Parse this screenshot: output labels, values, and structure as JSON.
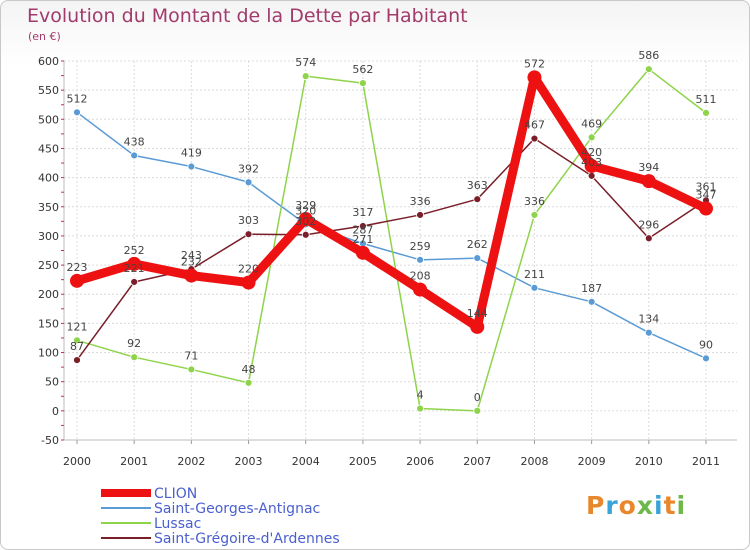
{
  "header": {
    "title": "Evolution du Montant de la Dette par Habitant",
    "unit": "(en €)"
  },
  "logo": {
    "text": "Proxiti",
    "letters": [
      "P",
      "r",
      "o",
      "x",
      "i",
      "t",
      "i"
    ],
    "colors": [
      "#e8872b",
      "#3aa3d8",
      "#e8872b",
      "#6cb84a",
      "#3aa3d8",
      "#e8872b",
      "#6cb84a"
    ]
  },
  "chart_data": {
    "type": "line",
    "title": "Evolution du Montant de la Dette par Habitant",
    "ylabel": "(en €)",
    "xlabel": "",
    "x": [
      "2000",
      "2001",
      "2002",
      "2003",
      "2004",
      "2005",
      "2006",
      "2007",
      "2008",
      "2009",
      "2010",
      "2011"
    ],
    "ylim": [
      -50,
      600
    ],
    "yticks": [
      -50,
      0,
      50,
      100,
      150,
      200,
      250,
      300,
      350,
      400,
      450,
      500,
      550,
      600
    ],
    "grid": true,
    "legend_position": "bottom-left",
    "series": [
      {
        "name": "CLION",
        "color": "#ee1111",
        "emphasis": true,
        "values": [
          223,
          252,
          232,
          220,
          329,
          271,
          208,
          144,
          572,
          420,
          394,
          347
        ]
      },
      {
        "name": "Saint-Georges-Antignac",
        "color": "#5b9bd5",
        "emphasis": false,
        "values": [
          512,
          438,
          419,
          392,
          320,
          287,
          259,
          262,
          211,
          187,
          134,
          90
        ]
      },
      {
        "name": "Lussac",
        "color": "#8ed44a",
        "emphasis": false,
        "values": [
          121,
          92,
          71,
          48,
          574,
          562,
          4,
          0,
          336,
          469,
          586,
          511
        ]
      },
      {
        "name": "Saint-Grégoire-d'Ardennes",
        "color": "#7a1f2a",
        "emphasis": false,
        "values": [
          87,
          221,
          243,
          303,
          302,
          317,
          336,
          363,
          467,
          403,
          296,
          361
        ]
      }
    ]
  }
}
